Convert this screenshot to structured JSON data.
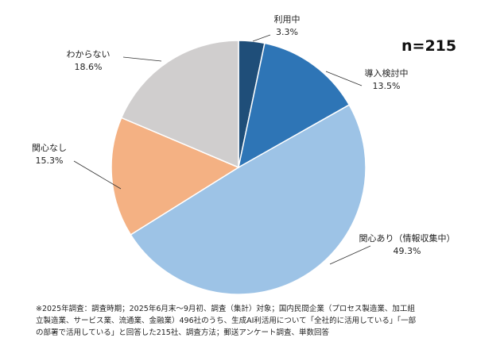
{
  "chart_data": {
    "type": "pie",
    "sample_label": "n=215",
    "start": "12 o'clock",
    "direction": "clockwise",
    "slices": [
      {
        "label": "利用中",
        "value": 3.3,
        "value_label": "3.3%",
        "color": "#1f4e79"
      },
      {
        "label": "導入検討中",
        "value": 13.5,
        "value_label": "13.5%",
        "color": "#2e75b6"
      },
      {
        "label": "関心あり（情報収集中）",
        "value": 49.3,
        "value_label": "49.3%",
        "color": "#9dc3e6"
      },
      {
        "label": "関心なし",
        "value": 15.3,
        "value_label": "15.3%",
        "color": "#f4b183"
      },
      {
        "label": "わからない",
        "value": 18.6,
        "value_label": "18.6%",
        "color": "#d0cece"
      }
    ]
  },
  "footnote": {
    "lines": [
      "※2025年調査：調査時期；2025年6月末〜9月初、調査（集計）対象；国内民間企業（プロセス製造業、加工組",
      "立製造業、サービス業、流通業、金融業）496社のうち、生成AI利活用について「全社的に活用している」「一部",
      "の部署で活用している」と回答した215社、調査方法；郵送アンケート調査、単数回答"
    ]
  }
}
